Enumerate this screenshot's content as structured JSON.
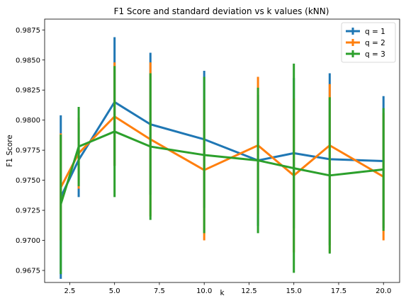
{
  "chart_data": {
    "type": "line",
    "title": "F1 Score and standard deviation vs k values (kNN)",
    "xlabel": "k",
    "ylabel": "F1 Score",
    "x": [
      2,
      3,
      5,
      7,
      10,
      13,
      15,
      17,
      20
    ],
    "xlim": [
      1.1,
      20.9
    ],
    "ylim": [
      0.9665,
      0.9884
    ],
    "xticks": [
      2.5,
      5.0,
      7.5,
      10.0,
      12.5,
      15.0,
      17.5,
      20.0
    ],
    "xtick_labels": [
      "2.5",
      "5.0",
      "7.5",
      "10.0",
      "12.5",
      "15.0",
      "17.5",
      "20.0"
    ],
    "yticks": [
      0.9675,
      0.97,
      0.9725,
      0.975,
      0.9775,
      0.98,
      0.9825,
      0.985,
      0.9875
    ],
    "ytick_labels": [
      "0.9675",
      "0.9700",
      "0.9725",
      "0.9750",
      "0.9775",
      "0.9800",
      "0.9825",
      "0.9850",
      "0.9875"
    ],
    "grid": false,
    "legend_position": "top-right",
    "series": [
      {
        "name": "q = 1",
        "color": "#1f77b4",
        "values": [
          0.9736,
          0.9767,
          0.9815,
          0.97965,
          0.9784,
          0.97665,
          0.97725,
          0.97675,
          0.9766
        ],
        "err_low": [
          0.9668,
          0.9736,
          0.9762,
          0.9738,
          0.9727,
          0.9712,
          0.971,
          0.9696,
          0.971
        ],
        "err_high": [
          0.9804,
          0.9798,
          0.9869,
          0.9856,
          0.9841,
          0.9821,
          0.9835,
          0.9839,
          0.982
        ]
      },
      {
        "name": "q = 2",
        "color": "#ff7f0e",
        "values": [
          0.9744,
          0.97725,
          0.9803,
          0.9784,
          0.97585,
          0.9779,
          0.9754,
          0.9779,
          0.9753
        ],
        "err_low": [
          0.97,
          0.9743,
          0.9762,
          0.972,
          0.97,
          0.9722,
          0.969,
          0.969,
          0.97
        ],
        "err_high": [
          0.9789,
          0.9802,
          0.9848,
          0.9848,
          0.9817,
          0.9836,
          0.9818,
          0.983,
          0.9806
        ]
      },
      {
        "name": "q = 3",
        "color": "#2ca02c",
        "values": [
          0.973,
          0.9778,
          0.97905,
          0.9778,
          0.9771,
          0.97665,
          0.976,
          0.9754,
          0.9759
        ],
        "err_low": [
          0.9672,
          0.9745,
          0.9736,
          0.9717,
          0.9706,
          0.9706,
          0.9673,
          0.9689,
          0.9708
        ],
        "err_high": [
          0.9788,
          0.9811,
          0.9845,
          0.9839,
          0.9836,
          0.9827,
          0.9847,
          0.9819,
          0.981
        ]
      }
    ]
  }
}
